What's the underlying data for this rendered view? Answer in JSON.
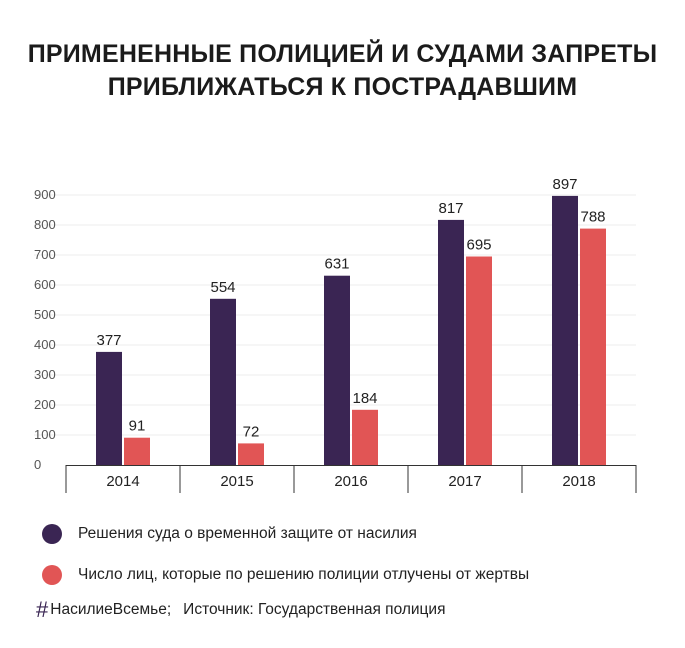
{
  "title_lines": [
    "ПРИМЕНЕННЫЕ ПОЛИЦИЕЙ И СУДАМИ ЗАПРЕТЫ",
    "ПРИБЛИЖАТЬСЯ К ПОСТРАДАВШИМ"
  ],
  "chart_data": {
    "type": "bar",
    "categories": [
      "2014",
      "2015",
      "2016",
      "2017",
      "2018"
    ],
    "series": [
      {
        "name": "Решения суда о временной защите от насилия",
        "color": "#3a2553",
        "values": [
          377,
          554,
          631,
          817,
          897
        ]
      },
      {
        "name": "Число лиц, которые по решению полиции отлучены от жертвы",
        "color": "#e15555",
        "values": [
          91,
          72,
          184,
          695,
          788
        ]
      }
    ],
    "yticks": [
      0,
      100,
      200,
      300,
      400,
      500,
      600,
      700,
      800,
      900
    ],
    "ylim": [
      0,
      900
    ],
    "grid": true,
    "legend": "bottom-left"
  },
  "hashtag": {
    "icon": "hash-icon",
    "symbol": "#",
    "text": "НасилиеВсемье;"
  },
  "source_text": "Источник: Государственная полиция"
}
